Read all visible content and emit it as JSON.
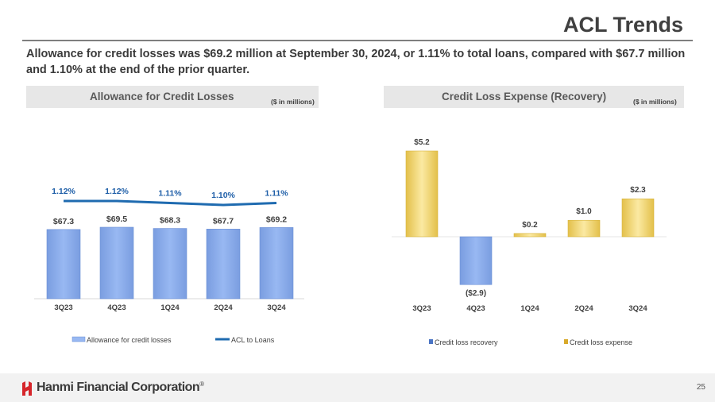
{
  "page": {
    "title": "ACL Trends",
    "subtitle": "Allowance for credit losses was $69.2 million at September 30, 2024, or 1.11% to total loans, compared with $67.7 million and 1.10% at the end of the prior quarter.",
    "page_number": "25",
    "company": "Hanmi Financial Corporation",
    "trademark": "®",
    "colors": {
      "bar_blue": "#98b8f2",
      "bar_gold": "#f1d670",
      "line_blue": "#1f6bb0",
      "label_blue": "#1f5fa8"
    }
  },
  "left_panel": {
    "title": "Allowance for Credit Losses",
    "units": "($ in millions)"
  },
  "right_panel": {
    "title": "Credit Loss Expense (Recovery)",
    "units": "($ in millions)"
  },
  "chart_data": [
    {
      "type": "bar",
      "title": "Allowance for Credit Losses",
      "units": "($ in millions)",
      "categories": [
        "3Q23",
        "4Q23",
        "1Q24",
        "2Q24",
        "3Q24"
      ],
      "series": [
        {
          "name": "Allowance for credit losses",
          "type": "bar",
          "values": [
            67.3,
            69.5,
            68.3,
            67.7,
            69.2
          ],
          "labels": [
            "$67.3",
            "$69.5",
            "$68.3",
            "$67.7",
            "$69.2"
          ]
        },
        {
          "name": "ACL to Loans",
          "type": "line",
          "values": [
            1.12,
            1.12,
            1.11,
            1.1,
            1.11
          ],
          "labels": [
            "1.12%",
            "1.12%",
            "1.11%",
            "1.10%",
            "1.11%"
          ]
        }
      ],
      "legend": "bottom",
      "grid": false
    },
    {
      "type": "bar",
      "title": "Credit Loss Expense (Recovery)",
      "units": "($ in millions)",
      "categories": [
        "3Q23",
        "4Q23",
        "1Q24",
        "2Q24",
        "3Q24"
      ],
      "values": [
        5.2,
        -2.9,
        0.2,
        1.0,
        2.3
      ],
      "labels": [
        "$5.2",
        "($2.9)",
        "$0.2",
        "$1.0",
        "$2.3"
      ],
      "series_names": [
        "Credit loss recovery",
        "Credit loss expense"
      ],
      "legend": "bottom",
      "grid": false
    }
  ]
}
